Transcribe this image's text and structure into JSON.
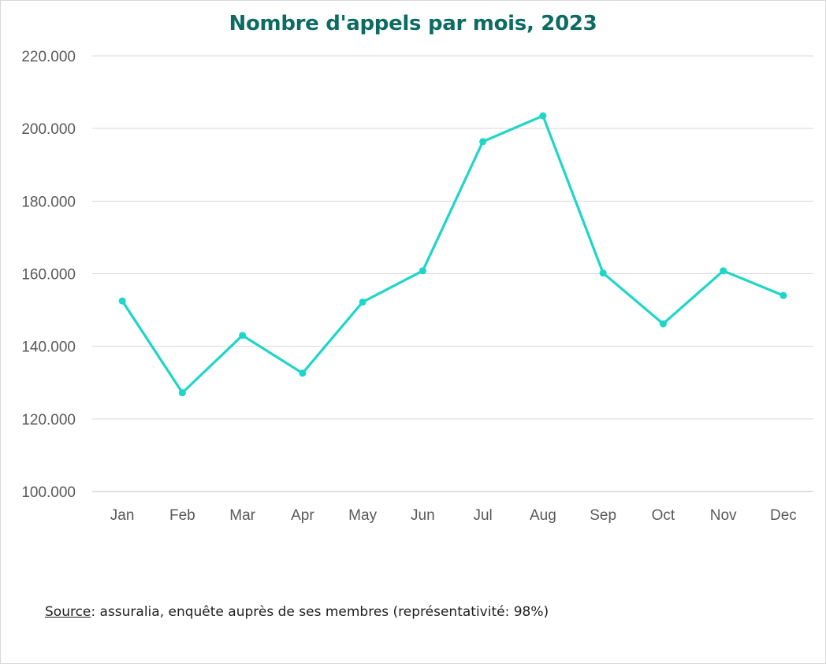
{
  "chart_data": {
    "type": "line",
    "title": "Nombre d'appels par mois, 2023",
    "xlabel": "",
    "ylabel": "",
    "categories": [
      "Jan",
      "Feb",
      "Mar",
      "Apr",
      "May",
      "Jun",
      "Jul",
      "Aug",
      "Sep",
      "Oct",
      "Nov",
      "Dec"
    ],
    "series": [
      {
        "values": [
          152500,
          127200,
          143000,
          132600,
          152200,
          160800,
          196400,
          203500,
          160200,
          146200,
          160800,
          154000
        ],
        "color": "#1ed6c8"
      }
    ],
    "ylim": [
      100000,
      220000
    ],
    "yticks": [
      100000,
      120000,
      140000,
      160000,
      180000,
      200000,
      220000
    ],
    "ytick_labels": [
      "100.000",
      "120.000",
      "140.000",
      "160.000",
      "180.000",
      "200.000",
      "220.000"
    ],
    "grid": true,
    "legend": "none"
  },
  "source": {
    "label": "Source",
    "text": ": assuralia, enquête auprès de ses membres (représentativité: 98%)"
  }
}
